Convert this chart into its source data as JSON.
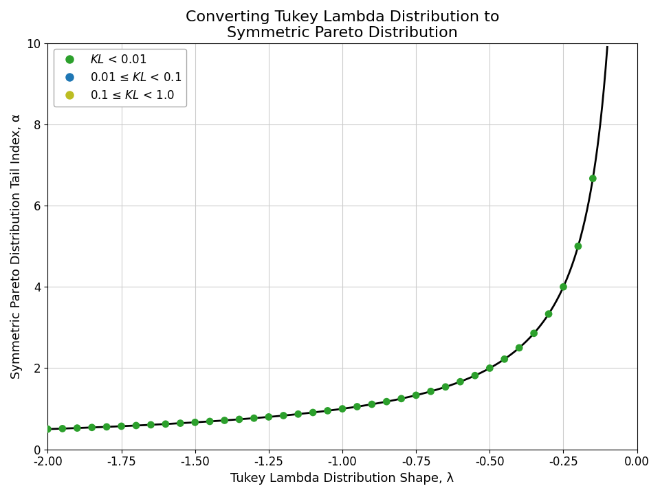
{
  "title": "Converting Tukey Lambda Distribution to\nSymmetric Pareto Distribution",
  "xlabel": "Tukey Lambda Distribution Shape, λ",
  "ylabel": "Symmetric Pareto Distribution Tail Index, α",
  "xlim": [
    -2.0,
    0.0
  ],
  "ylim": [
    0,
    10
  ],
  "xticks": [
    -2.0,
    -1.75,
    -1.5,
    -1.25,
    -1.0,
    -0.75,
    -0.5,
    -0.25,
    0.0
  ],
  "yticks": [
    0,
    2,
    4,
    6,
    8,
    10
  ],
  "lambda_start": -2.0,
  "lambda_end": -0.101,
  "scatter_step": 0.05,
  "legend": [
    {
      "label": "KL < 0.01",
      "color": "#2ca02c"
    },
    {
      "label": "0.01 ≤ KL < 0.1",
      "color": "#1f77b4"
    },
    {
      "label": "0.1 ≤ KL < 1.0",
      "color": "#bcbd22"
    }
  ],
  "background_color": "#ffffff",
  "grid_color": "#cccccc",
  "line_color": "#000000",
  "dot_color": "#2ca02c",
  "dot_size": 60,
  "line_width": 2.0,
  "title_fontsize": 16,
  "label_fontsize": 13,
  "tick_fontsize": 12,
  "legend_fontsize": 12,
  "legend_marker_size": 10
}
